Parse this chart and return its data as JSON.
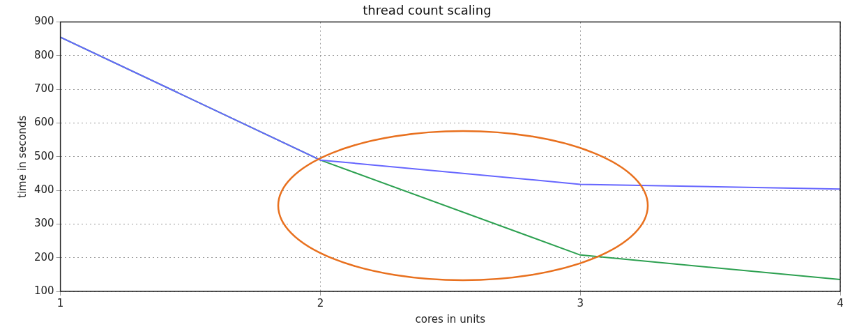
{
  "chart_data": {
    "type": "line",
    "title": "thread count scaling",
    "xlabel": "cores in units",
    "ylabel": "time in seconds",
    "x": [
      1,
      2,
      3,
      4
    ],
    "series": [
      {
        "color": "#6666ff",
        "values": [
          855,
          490,
          418,
          404
        ]
      },
      {
        "color": "#2ca050",
        "values": [
          855,
          490,
          208,
          135
        ]
      }
    ],
    "xlim": [
      1,
      4
    ],
    "xticks": [
      1,
      2,
      3,
      4
    ],
    "ylim": [
      100,
      900
    ],
    "yticks": [
      100,
      200,
      300,
      400,
      500,
      600,
      700,
      800,
      900
    ],
    "grid": true,
    "marker": "none",
    "line_style": "solid"
  }
}
